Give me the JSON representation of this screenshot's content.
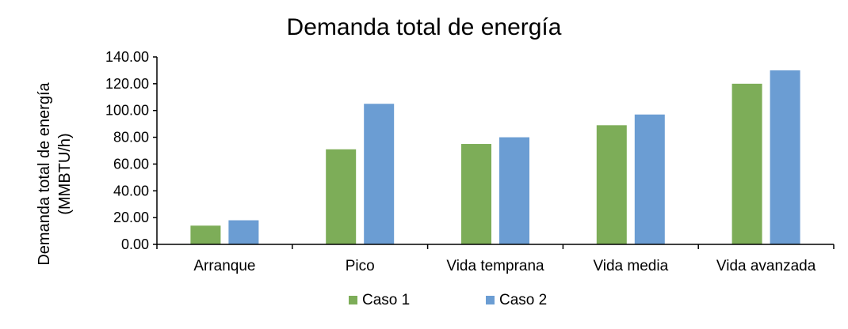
{
  "chart_data": {
    "type": "bar",
    "title": "Demanda total de energía",
    "ylabel_lines": [
      "Demanda total de energía",
      "(MMBTU/h)"
    ],
    "xlabel": "",
    "categories": [
      "Arranque",
      "Pico",
      "Vida temprana",
      "Vida media",
      "Vida avanzada"
    ],
    "series": [
      {
        "name": "Caso 1",
        "color": "#7dad58",
        "values": [
          14,
          71,
          75,
          89,
          120
        ]
      },
      {
        "name": "Caso 2",
        "color": "#6b9dd3",
        "values": [
          18,
          105,
          80,
          97,
          130
        ]
      }
    ],
    "ylim": [
      0,
      140
    ],
    "yticks": [
      "0.00",
      "20.00",
      "40.00",
      "60.00",
      "80.00",
      "100.00",
      "120.00",
      "140.00"
    ],
    "grid": false,
    "legend_position": "bottom"
  }
}
